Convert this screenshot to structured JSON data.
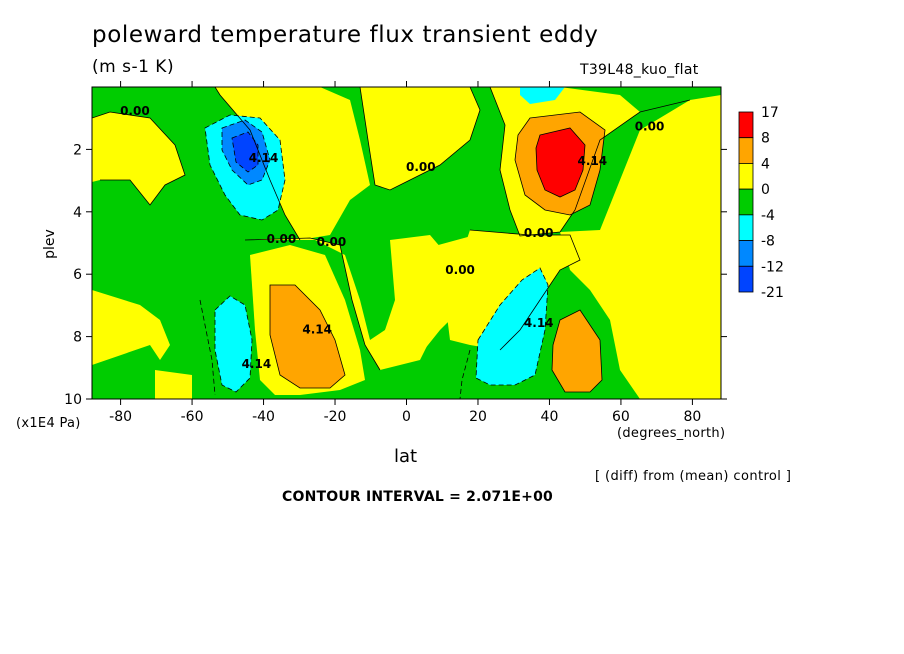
{
  "chart_data": {
    "type": "heatmap",
    "title": "poleward temperature flux transient eddy",
    "subtitle": "(m s-1 K)",
    "run_label": "T39L48_kuo_flat",
    "xlabel": "lat",
    "x_units": "(degrees_north)",
    "ylabel": "plev",
    "y_units": "(x1E4 Pa)",
    "xlim": [
      -88,
      88
    ],
    "ylim": [
      10,
      0
    ],
    "x_ticks": [
      "-80",
      "-60",
      "-40",
      "-20",
      "0",
      "20",
      "40",
      "60",
      "80"
    ],
    "y_ticks": [
      "2",
      "4",
      "6",
      "8",
      "10"
    ],
    "note": "[ (diff) from (mean) control ]",
    "contour_interval_text": "CONTOUR INTERVAL = 2.071E+00",
    "colorbar": {
      "levels": [
        "17",
        "8",
        "4",
        "0",
        "-4",
        "-8",
        "-12",
        "-21"
      ],
      "colors": [
        "#ff0000",
        "#ffa500",
        "#ffff00",
        "#00cc00",
        "#00ffff",
        "#0088ff",
        "#0044ff"
      ]
    },
    "contour_labels": [
      {
        "text": "0.00",
        "lat": -76,
        "plev": 0.9
      },
      {
        "text": "4.14",
        "lat": -40,
        "plev": 2.4
      },
      {
        "text": "0.00",
        "lat": 4,
        "plev": 2.7
      },
      {
        "text": "4.14",
        "lat": 52,
        "plev": 2.5
      },
      {
        "text": "0.00",
        "lat": 68,
        "plev": 1.4
      },
      {
        "text": "0.00",
        "lat": -35,
        "plev": 5.0
      },
      {
        "text": "0.00",
        "lat": -21,
        "plev": 5.1
      },
      {
        "text": "0.00",
        "lat": 15,
        "plev": 6.0
      },
      {
        "text": "0.00",
        "lat": 37,
        "plev": 4.8
      },
      {
        "text": "4.14",
        "lat": -25,
        "plev": 7.9
      },
      {
        "text": "4.14",
        "lat": 37,
        "plev": 7.7
      },
      {
        "text": "4.14",
        "lat": -42,
        "plev": 9.0
      }
    ],
    "extrema": [
      {
        "lat": -46,
        "plev": 2.4,
        "sign": "negative",
        "peak_band": "-12 to -21"
      },
      {
        "lat": 44,
        "plev": 2.4,
        "sign": "positive",
        "peak_band": "8 to 17"
      },
      {
        "lat": -28,
        "plev": 8.2,
        "sign": "positive",
        "peak_band": "4 to 8"
      },
      {
        "lat": -49,
        "plev": 8.6,
        "sign": "negative",
        "peak_band": "-4 to -8"
      },
      {
        "lat": 28,
        "plev": 8.2,
        "sign": "negative",
        "peak_band": "-4 to -8"
      },
      {
        "lat": 47,
        "plev": 8.8,
        "sign": "positive",
        "peak_band": "4 to 8"
      }
    ]
  }
}
